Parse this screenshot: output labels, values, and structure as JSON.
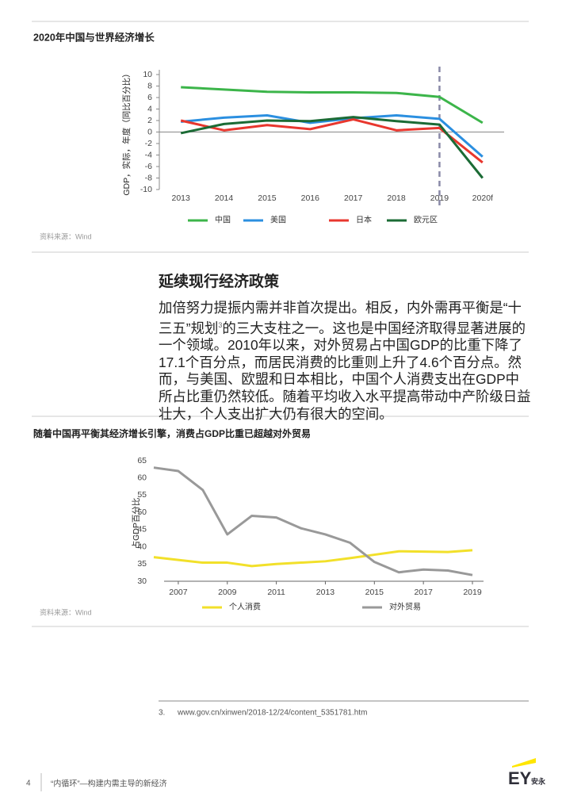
{
  "chart_data": [
    {
      "type": "line",
      "title": "2020年中国与世界经济增长",
      "y_label": "GDP，实际，年度（同比百分比）",
      "categories": [
        "2013",
        "2014",
        "2015",
        "2016",
        "2017",
        "2018",
        "2019",
        "2020f"
      ],
      "ylim": [
        -10,
        10
      ],
      "yticks": [
        -10,
        -8,
        -6,
        -4,
        -2,
        0,
        2,
        4,
        6,
        8,
        10
      ],
      "series": [
        {
          "name": "中国",
          "color": "#3cb54a",
          "values": [
            7.8,
            7.4,
            7.0,
            6.9,
            6.9,
            6.8,
            6.1,
            1.6
          ]
        },
        {
          "name": "美国",
          "color": "#2b8fe0",
          "values": [
            1.8,
            2.5,
            2.9,
            1.6,
            2.4,
            2.9,
            2.3,
            -4.3
          ]
        },
        {
          "name": "日本",
          "color": "#e8372e",
          "values": [
            2.0,
            0.3,
            1.2,
            0.5,
            2.2,
            0.3,
            0.7,
            -5.3
          ]
        },
        {
          "name": "欧元区",
          "color": "#1b6b35",
          "values": [
            -0.2,
            1.4,
            2.0,
            1.9,
            2.6,
            1.9,
            1.3,
            -8.0
          ]
        }
      ],
      "source": "资料来源：Wind"
    },
    {
      "type": "line",
      "title": "随着中国再平衡其经济增长引擎，消费占GDP比重已超越对外贸易",
      "y_label": "占GDP百分比",
      "x": [
        2006,
        2007,
        2008,
        2009,
        2010,
        2011,
        2012,
        2013,
        2014,
        2015,
        2016,
        2017,
        2018,
        2019
      ],
      "xlim": [
        2006,
        2019
      ],
      "xticks": [
        2007,
        2009,
        2011,
        2013,
        2015,
        2017,
        2019
      ],
      "ylim": [
        30,
        65
      ],
      "yticks": [
        30,
        35,
        40,
        45,
        50,
        55,
        60,
        65
      ],
      "series": [
        {
          "name": "个人消费",
          "color": "#f2e02a",
          "values": [
            37.0,
            36.2,
            35.4,
            35.4,
            34.4,
            35.0,
            35.4,
            35.8,
            36.7,
            37.7,
            38.7,
            38.6,
            38.5,
            39.0
          ]
        },
        {
          "name": "对外贸易",
          "color": "#999999",
          "values": [
            63.0,
            62.0,
            56.5,
            43.6,
            49.0,
            48.5,
            45.4,
            43.6,
            41.2,
            35.6,
            32.6,
            33.4,
            33.1,
            31.8
          ]
        }
      ],
      "source": "资料来源：Wind"
    }
  ],
  "section": {
    "heading": "延续现行经济政策",
    "paragraph_start": "加倍努力提振内需并非首次提出。相反，内外需再平衡是“十三五”规划",
    "footnote_ref": "3",
    "paragraph_end": "的三大支柱之一。这也是中国经济取得显著进展的一个领域。2010年以来，对外贸易占中国GDP的比重下降了17.1个百分点，而居民消费的比重则上升了4.6个百分点。然而，与美国、欧盟和日本相比，中国个人消费支出在GDP中所占比重仍然较低。随着平均收入水平提高带动中产阶级日益壮大，个人支出扩大仍有很大的空间。"
  },
  "footnote": {
    "number": "3.",
    "text": "www.gov.cn/xinwen/2018-12/24/content_5351781.htm"
  },
  "footer": {
    "page": "4",
    "title": "“内循环”—构建内需主导的新经济",
    "logo": "EY",
    "logo_sub": "安永"
  }
}
